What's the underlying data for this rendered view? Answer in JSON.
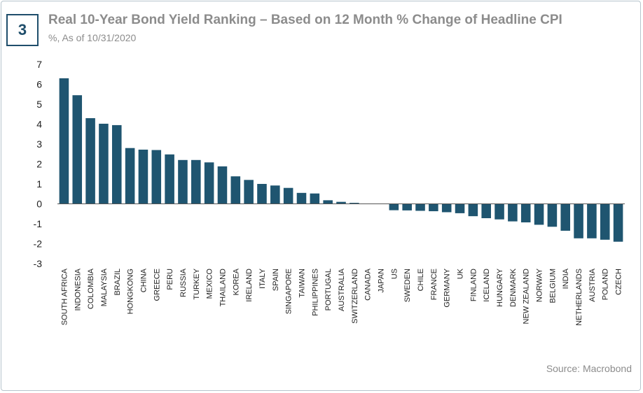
{
  "header": {
    "badge_number": "3",
    "title": "Real 10-Year Bond Yield Ranking – Based on 12 Month % Change of Headline CPI",
    "subtitle": "%, As of 10/31/2020"
  },
  "footer": {
    "source": "Source: Macrobond"
  },
  "colors": {
    "bar": "#1f5570",
    "axis": "#555555",
    "badge": "#1f4e6b",
    "title": "#8c8c8c"
  },
  "chart_data": {
    "type": "bar",
    "title": "Real 10-Year Bond Yield Ranking – Based on 12 Month % Change of Headline CPI",
    "subtitle": "%, As of 10/31/2020",
    "xlabel": "",
    "ylabel": "",
    "ylim": [
      -3,
      7
    ],
    "yticks": [
      7,
      6,
      5,
      4,
      3,
      2,
      1,
      0,
      -1,
      -2,
      -3
    ],
    "grid": false,
    "categories": [
      "SOUTH AFRICA",
      "INDONESIA",
      "COLOMBIA",
      "MALAYSIA",
      "BRAZIL",
      "HONGKONG",
      "CHINA",
      "GREECE",
      "PERU",
      "RUSSIA",
      "TURKEY",
      "MEXICO",
      "THAILAND",
      "KOREA",
      "IRELAND",
      "ITALY",
      "SPAIN",
      "SINGAPORE",
      "TAIWAN",
      "PHILIPPINES",
      "PORTUGAL",
      "AUSTRALIA",
      "SWITZERLAND",
      "CANADA",
      "JAPAN",
      "US",
      "SWEDEN",
      "CHILE",
      "FRANCE",
      "GERMANY",
      "UK",
      "FINLAND",
      "ICELAND",
      "HUNGARY",
      "DENMARK",
      "NEW ZEALAND",
      "NORWAY",
      "BELGIUM",
      "INDIA",
      "NETHERLANDS",
      "AUSTRIA",
      "POLAND",
      "CZECH"
    ],
    "values": [
      6.3,
      5.45,
      4.3,
      4.02,
      3.95,
      2.8,
      2.72,
      2.7,
      2.48,
      2.2,
      2.2,
      2.08,
      1.88,
      1.38,
      1.2,
      1.0,
      0.92,
      0.8,
      0.55,
      0.52,
      0.18,
      0.1,
      0.05,
      0.0,
      0.0,
      -0.32,
      -0.33,
      -0.35,
      -0.37,
      -0.42,
      -0.47,
      -0.62,
      -0.72,
      -0.78,
      -0.88,
      -0.93,
      -1.05,
      -1.15,
      -1.35,
      -1.73,
      -1.73,
      -1.8,
      -1.9
    ]
  }
}
